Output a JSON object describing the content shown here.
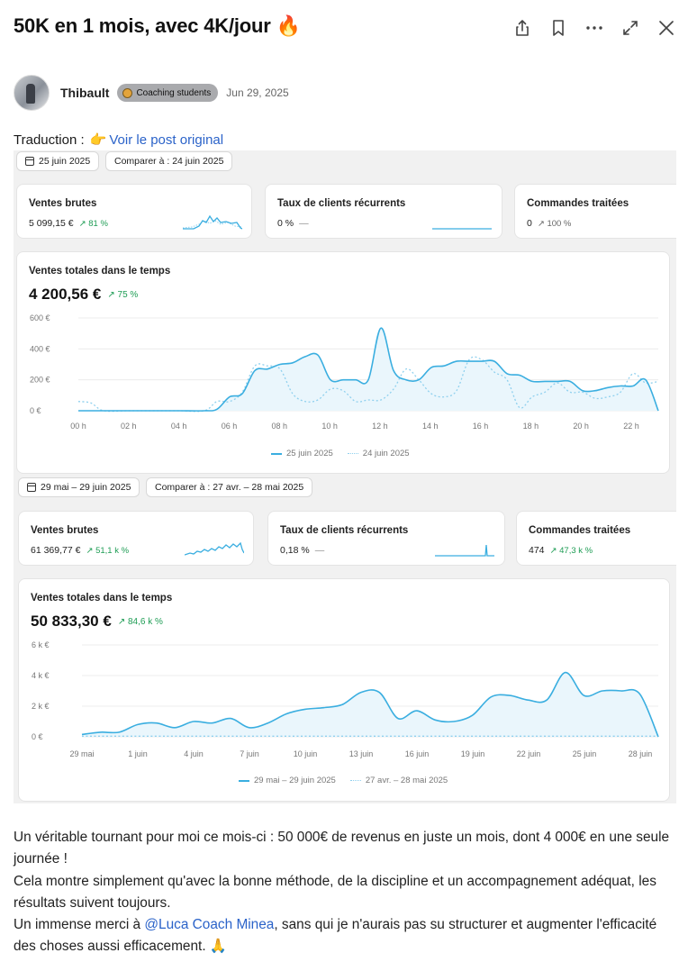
{
  "post": {
    "title": "50K en 1 mois, avec 4K/jour",
    "title_emoji": "🔥",
    "author": "Thibault",
    "badge": "Coaching students",
    "date": "Jun 29, 2025",
    "translation_label": "Traduction :",
    "translation_emoji": "👉",
    "translation_link": "Voir le post original",
    "body": {
      "line1": "Un véritable tournant pour moi ce mois-ci : 50 000€ de revenus en juste un mois, dont 4 000€ en une seule journée !",
      "line2": "Cela montre simplement qu'avec la bonne méthode, de la discipline et un accompagnement adéquat, les résultats suivent toujours.",
      "line3_before": "Un immense merci à ",
      "mention": "@Luca Coach Minea",
      "line3_after": ", sans qui je n'aurais pas su structurer et augmenter l'efficacité des choses aussi efficacement. ",
      "end_emoji": "🙏"
    }
  },
  "header_icons": [
    "share-icon",
    "bookmark-icon",
    "more-icon",
    "expand-icon",
    "close-icon"
  ],
  "dashboard1": {
    "date_pill": "25 juin 2025",
    "compare_pill": "Comparer à : 24 juin 2025",
    "cards": [
      {
        "label": "Ventes brutes",
        "value": "5 099,15 €",
        "change": "↗ 81 %"
      },
      {
        "label": "Taux de clients récurrents",
        "value": "0 %",
        "change": "—"
      },
      {
        "label": "Commandes traitées",
        "value": "0",
        "change": "↗ 100 %"
      }
    ],
    "chart_title": "Ventes totales dans le temps",
    "total": "4 200,56 €",
    "total_change": "↗ 75 %",
    "legend": [
      "25 juin 2025",
      "24 juin 2025"
    ]
  },
  "dashboard2": {
    "date_pill": "29 mai – 29 juin 2025",
    "compare_pill": "Comparer à : 27 avr. – 28 mai 2025",
    "cards": [
      {
        "label": "Ventes brutes",
        "value": "61 369,77 €",
        "change": "↗ 51,1 k %"
      },
      {
        "label": "Taux de clients récurrents",
        "value": "0,18 %",
        "change": "—"
      },
      {
        "label": "Commandes traitées",
        "value": "474",
        "change": "↗ 47,3 k %"
      }
    ],
    "chart_title": "Ventes totales dans le temps",
    "total": "50 833,30 €",
    "total_change": "↗ 84,6 k %",
    "legend": [
      "29 mai – 29 juin 2025",
      "27 avr. – 28 mai 2025"
    ]
  },
  "colors": {
    "line": "#3aaee0",
    "compare": "#8fd0ee",
    "positive": "#1f9d55",
    "link": "#2b63c9"
  },
  "chart_data": [
    {
      "type": "line",
      "title": "Ventes totales dans le temps",
      "ylim": [
        0,
        600
      ],
      "y_ticks": [
        "600 €",
        "400 €",
        "200 €",
        "0 €"
      ],
      "y_tick_values": [
        600,
        400,
        200,
        0
      ],
      "x_ticks": [
        "00 h",
        "02 h",
        "04 h",
        "06 h",
        "08 h",
        "10 h",
        "12 h",
        "14 h",
        "16 h",
        "18 h",
        "20 h",
        "22 h"
      ],
      "x_range": [
        0,
        23
      ],
      "series": [
        {
          "name": "25 juin 2025",
          "style": "solid",
          "x": [
            0,
            1,
            2,
            3,
            4,
            5,
            5.5,
            6,
            6.5,
            7,
            7.5,
            8,
            8.5,
            9,
            9.5,
            10,
            10.5,
            11,
            11.5,
            12,
            12.5,
            13,
            13.5,
            14,
            14.5,
            15,
            15.5,
            16,
            16.5,
            17,
            17.5,
            18,
            18.5,
            19,
            19.5,
            20,
            20.5,
            21,
            21.5,
            22,
            22.5,
            23
          ],
          "y": [
            0,
            0,
            0,
            0,
            0,
            0,
            10,
            90,
            110,
            260,
            270,
            300,
            310,
            350,
            360,
            200,
            200,
            200,
            200,
            535,
            260,
            200,
            200,
            280,
            290,
            320,
            320,
            320,
            320,
            240,
            230,
            190,
            190,
            190,
            190,
            130,
            130,
            150,
            160,
            160,
            200,
            0
          ]
        },
        {
          "name": "24 juin 2025",
          "style": "dotted",
          "x": [
            0,
            0.5,
            1,
            2,
            3,
            4,
            5,
            5.5,
            6,
            6.5,
            7,
            7.5,
            8,
            8.5,
            9,
            9.5,
            10,
            10.5,
            11,
            11.5,
            12,
            12.5,
            13,
            13.5,
            14,
            14.5,
            15,
            15.5,
            16,
            16.5,
            17,
            17.5,
            18,
            18.5,
            19,
            19.5,
            20,
            20.5,
            21,
            21.5,
            22,
            22.5,
            23
          ],
          "y": [
            60,
            50,
            0,
            0,
            0,
            0,
            0,
            60,
            60,
            120,
            290,
            290,
            270,
            110,
            60,
            70,
            140,
            130,
            60,
            70,
            70,
            140,
            270,
            200,
            110,
            90,
            130,
            330,
            330,
            250,
            200,
            20,
            90,
            120,
            180,
            120,
            120,
            80,
            90,
            120,
            240,
            180,
            190
          ]
        }
      ],
      "legend": "bottom"
    },
    {
      "type": "line",
      "title": "Ventes totales dans le temps",
      "ylim": [
        0,
        6000
      ],
      "y_ticks": [
        "6 k €",
        "4 k €",
        "2 k €",
        "0 €"
      ],
      "y_tick_values": [
        6000,
        4000,
        2000,
        0
      ],
      "x_ticks": [
        "29 mai",
        "1 juin",
        "4 juin",
        "7 juin",
        "10 juin",
        "13 juin",
        "16 juin",
        "19 juin",
        "22 juin",
        "25 juin",
        "28 juin"
      ],
      "x_range": [
        0,
        31
      ],
      "series": [
        {
          "name": "29 mai – 29 juin 2025",
          "style": "solid",
          "x": [
            0,
            1,
            2,
            3,
            4,
            5,
            6,
            7,
            8,
            9,
            10,
            11,
            12,
            13,
            14,
            15,
            16,
            17,
            18,
            19,
            20,
            21,
            22,
            23,
            24,
            25,
            26,
            27,
            28,
            29,
            30,
            31
          ],
          "y": [
            150,
            300,
            300,
            800,
            900,
            600,
            1000,
            900,
            1200,
            600,
            900,
            1500,
            1800,
            1900,
            2100,
            2900,
            2900,
            1200,
            1700,
            1100,
            1000,
            1400,
            2600,
            2700,
            2400,
            2400,
            4200,
            2700,
            3000,
            3000,
            2800,
            0
          ]
        },
        {
          "name": "27 avr. – 28 mai 2025",
          "style": "dotted",
          "x": [
            0,
            31
          ],
          "y": [
            40,
            40
          ]
        }
      ],
      "legend": "bottom"
    }
  ]
}
